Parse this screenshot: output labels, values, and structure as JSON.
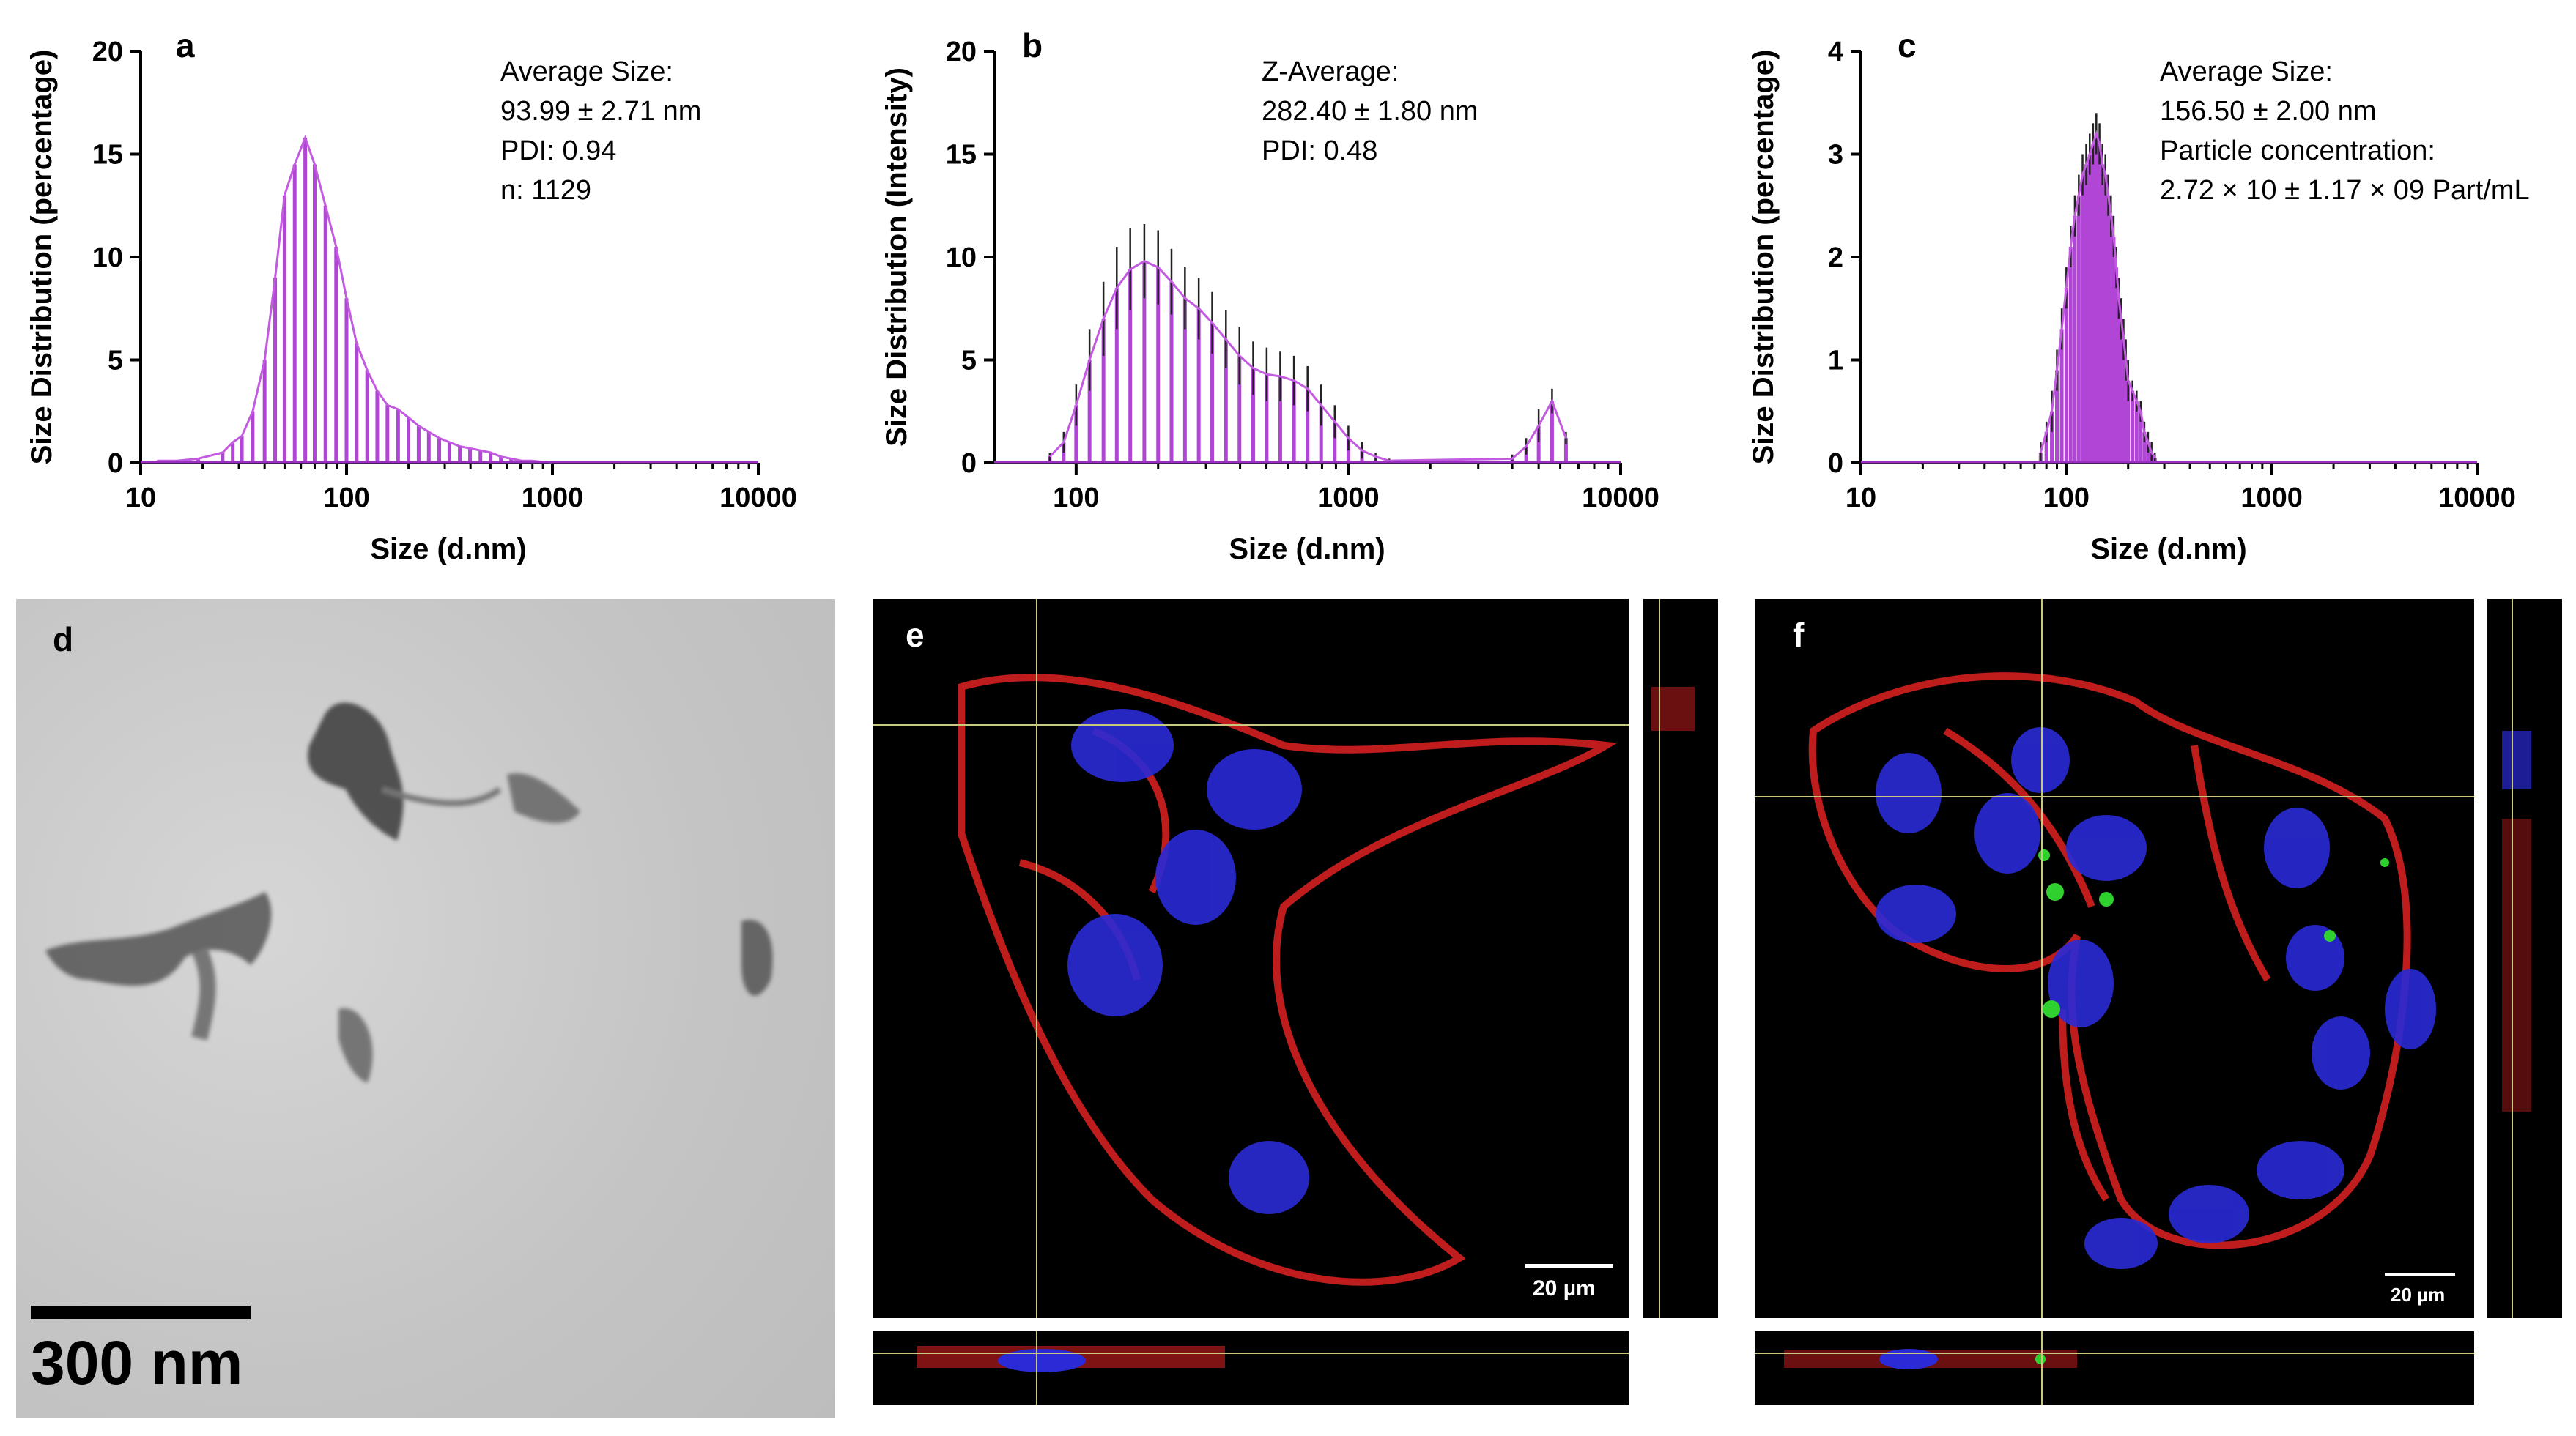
{
  "chart_data": [
    {
      "panel": "a",
      "type": "bar",
      "xscale": "log",
      "xlim": [
        10,
        10000
      ],
      "ylim": [
        0,
        20
      ],
      "xticks": [
        "10",
        "100",
        "1000",
        "10000"
      ],
      "yticks": [
        "0",
        "5",
        "10",
        "15",
        "20"
      ],
      "xlabel": "Size (d.nm)",
      "ylabel": "Size Distribution (percentage)",
      "annotations": [
        "Average Size:",
        "93.99 ± 2.71 nm",
        "PDI: 0.94",
        "n: 1129"
      ],
      "x": [
        12,
        15,
        19,
        25,
        28,
        31,
        35,
        40,
        45,
        50,
        56,
        63,
        70,
        79,
        89,
        100,
        112,
        126,
        141,
        158,
        178,
        200,
        224,
        251,
        282,
        316,
        355,
        398,
        447,
        501,
        562,
        631,
        708,
        794,
        891,
        1000
      ],
      "values": [
        0.1,
        0.1,
        0.2,
        0.5,
        1.0,
        1.3,
        2.5,
        5.0,
        9.0,
        13.0,
        14.5,
        15.8,
        14.5,
        12.5,
        10.5,
        8.0,
        5.8,
        4.5,
        3.5,
        2.8,
        2.6,
        2.2,
        1.8,
        1.5,
        1.2,
        1.0,
        0.8,
        0.7,
        0.6,
        0.5,
        0.3,
        0.2,
        0.1,
        0.1,
        0.05,
        0.02
      ]
    },
    {
      "panel": "b",
      "type": "bar",
      "xscale": "log",
      "xlim": [
        50,
        10000
      ],
      "ylim": [
        0,
        20
      ],
      "xticks": [
        "100",
        "1000",
        "10000"
      ],
      "yticks": [
        "0",
        "5",
        "10",
        "15",
        "20"
      ],
      "xlabel": "Size (d.nm)",
      "ylabel": "Size Distribution (Intensity)",
      "annotations": [
        "Z-Average:",
        "282.40 ± 1.80 nm",
        "PDI: 0.48"
      ],
      "x": [
        80,
        90,
        100,
        112,
        126,
        141,
        158,
        178,
        200,
        224,
        251,
        282,
        316,
        355,
        398,
        447,
        501,
        562,
        631,
        708,
        794,
        891,
        1000,
        1122,
        1259,
        1413,
        4000,
        4500,
        5000,
        5600,
        6300
      ],
      "values": [
        0.3,
        1.0,
        2.8,
        5.0,
        7.0,
        8.5,
        9.4,
        9.8,
        9.5,
        8.8,
        8.0,
        7.5,
        6.8,
        6.0,
        5.2,
        4.6,
        4.3,
        4.2,
        4.0,
        3.6,
        2.8,
        2.0,
        1.2,
        0.6,
        0.3,
        0.1,
        0.2,
        0.8,
        1.8,
        3.0,
        1.2
      ],
      "errors": [
        0.2,
        0.5,
        1.0,
        1.5,
        1.8,
        2.0,
        2.0,
        1.8,
        1.8,
        1.6,
        1.5,
        1.5,
        1.5,
        1.4,
        1.4,
        1.3,
        1.3,
        1.2,
        1.2,
        1.1,
        1.0,
        0.8,
        0.6,
        0.4,
        0.2,
        0.1,
        0.2,
        0.4,
        0.8,
        0.6,
        0.3
      ]
    },
    {
      "panel": "c",
      "type": "bar",
      "xscale": "log",
      "xlim": [
        10,
        10000
      ],
      "ylim": [
        0,
        4
      ],
      "xticks": [
        "10",
        "100",
        "1000",
        "10000"
      ],
      "yticks": [
        "0",
        "1",
        "2",
        "3",
        "4"
      ],
      "xlabel": "Size (d.nm)",
      "ylabel": "Size Distribution (percentage)",
      "annotations": [
        "Average Size:",
        "156.50 ± 2.00 nm",
        "Particle concentration:",
        "2.72 × 10 ± 1.17 × 09 Part/mL"
      ],
      "x": [
        75,
        80,
        85,
        90,
        95,
        100,
        105,
        110,
        115,
        120,
        125,
        130,
        135,
        140,
        145,
        150,
        155,
        160,
        165,
        170,
        175,
        180,
        185,
        190,
        195,
        200,
        210,
        220,
        230,
        240,
        250,
        260,
        270
      ],
      "values": [
        0.1,
        0.3,
        0.5,
        0.9,
        1.3,
        1.7,
        2.1,
        2.4,
        2.6,
        2.8,
        2.9,
        3.0,
        3.1,
        3.2,
        3.1,
        2.9,
        2.8,
        2.6,
        2.4,
        2.2,
        1.9,
        1.6,
        1.4,
        1.2,
        1.0,
        0.8,
        0.7,
        0.6,
        0.5,
        0.3,
        0.2,
        0.1,
        0.05
      ],
      "errors": [
        0.1,
        0.1,
        0.2,
        0.2,
        0.2,
        0.2,
        0.2,
        0.2,
        0.2,
        0.2,
        0.2,
        0.2,
        0.2,
        0.2,
        0.2,
        0.2,
        0.2,
        0.2,
        0.2,
        0.2,
        0.2,
        0.2,
        0.2,
        0.2,
        0.2,
        0.2,
        0.1,
        0.1,
        0.1,
        0.1,
        0.1,
        0.1,
        0.05
      ]
    }
  ],
  "panels": {
    "d": {
      "label": "d",
      "scalebar_text": "300 nm"
    },
    "e": {
      "label": "e",
      "scalebar_text": "20 µm"
    },
    "f": {
      "label": "f",
      "scalebar_text": "20 µm"
    }
  },
  "colors": {
    "bar": "#b146d6",
    "bar_line": "#9a2fc2",
    "curve": "#c25be0",
    "error": "#222222",
    "cell_membrane": "#d42020",
    "nucleus": "#2a2ad6",
    "particle": "#2ed12e",
    "crosshair": "#c8c880"
  }
}
